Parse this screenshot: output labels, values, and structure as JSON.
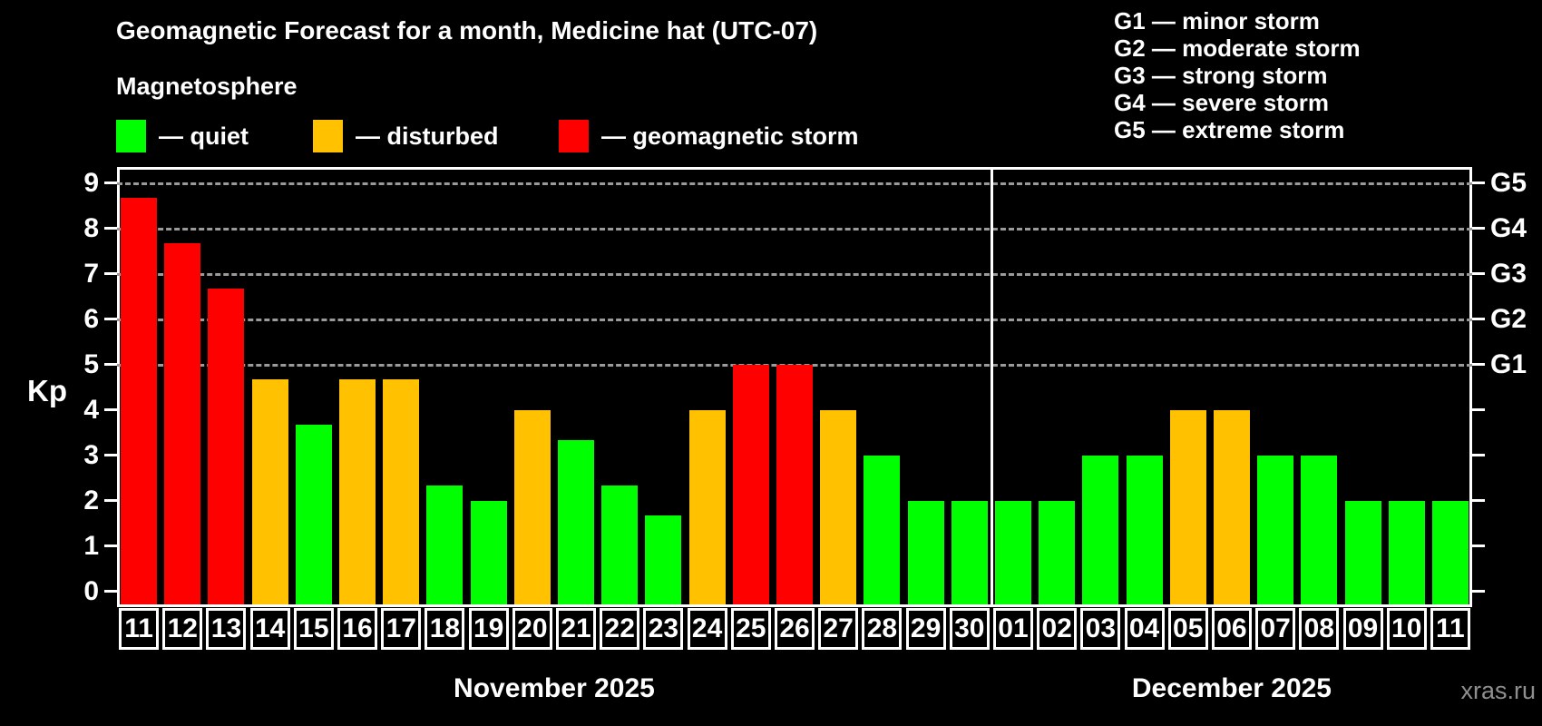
{
  "header": {
    "title": "Geomagnetic Forecast for a month, Medicine hat (UTC-07)",
    "subtitle": "Magnetosphere"
  },
  "legend": {
    "items": [
      {
        "key": "quiet",
        "label": "— quiet",
        "color": "#00ff00"
      },
      {
        "key": "disturbed",
        "label": "— disturbed",
        "color": "#ffc100"
      },
      {
        "key": "storm",
        "label": "— geomagnetic storm",
        "color": "#ff0000"
      }
    ]
  },
  "g_legend": {
    "lines": [
      "G1 — minor storm",
      "G2 — moderate storm",
      "G3 — strong storm",
      "G4 — severe storm",
      "G5 — extreme storm"
    ]
  },
  "chart_data": {
    "type": "bar",
    "title": "Geomagnetic Forecast for a month, Medicine hat (UTC-07)",
    "ylabel": "Kp",
    "y_ticks": [
      0,
      1,
      2,
      3,
      4,
      5,
      6,
      7,
      8,
      9
    ],
    "ylim": [
      -0.35,
      9.35
    ],
    "grid": "dashed-at-storm-levels",
    "grid_levels": [
      {
        "kp": 5,
        "label": "G1"
      },
      {
        "kp": 6,
        "label": "G2"
      },
      {
        "kp": 7,
        "label": "G3"
      },
      {
        "kp": 8,
        "label": "G4"
      },
      {
        "kp": 9,
        "label": "G5"
      }
    ],
    "colors": {
      "quiet": "#00ff00",
      "disturbed": "#ffc100",
      "storm": "#ff0000"
    },
    "days": [
      {
        "day": "11",
        "kp": 8.67,
        "level": "storm"
      },
      {
        "day": "12",
        "kp": 7.67,
        "level": "storm"
      },
      {
        "day": "13",
        "kp": 6.67,
        "level": "storm"
      },
      {
        "day": "14",
        "kp": 4.67,
        "level": "disturbed"
      },
      {
        "day": "15",
        "kp": 3.67,
        "level": "quiet"
      },
      {
        "day": "16",
        "kp": 4.67,
        "level": "disturbed"
      },
      {
        "day": "17",
        "kp": 4.67,
        "level": "disturbed"
      },
      {
        "day": "18",
        "kp": 2.33,
        "level": "quiet"
      },
      {
        "day": "19",
        "kp": 2.0,
        "level": "quiet"
      },
      {
        "day": "20",
        "kp": 4.0,
        "level": "disturbed"
      },
      {
        "day": "21",
        "kp": 3.33,
        "level": "quiet"
      },
      {
        "day": "22",
        "kp": 2.33,
        "level": "quiet"
      },
      {
        "day": "23",
        "kp": 1.67,
        "level": "quiet"
      },
      {
        "day": "24",
        "kp": 4.0,
        "level": "disturbed"
      },
      {
        "day": "25",
        "kp": 5.0,
        "level": "storm"
      },
      {
        "day": "26",
        "kp": 5.0,
        "level": "storm"
      },
      {
        "day": "27",
        "kp": 4.0,
        "level": "disturbed"
      },
      {
        "day": "28",
        "kp": 3.0,
        "level": "quiet"
      },
      {
        "day": "29",
        "kp": 2.0,
        "level": "quiet"
      },
      {
        "day": "30",
        "kp": 2.0,
        "level": "quiet"
      },
      {
        "day": "01",
        "kp": 2.0,
        "level": "quiet"
      },
      {
        "day": "02",
        "kp": 2.0,
        "level": "quiet"
      },
      {
        "day": "03",
        "kp": 3.0,
        "level": "quiet"
      },
      {
        "day": "04",
        "kp": 3.0,
        "level": "quiet"
      },
      {
        "day": "05",
        "kp": 4.0,
        "level": "disturbed"
      },
      {
        "day": "06",
        "kp": 4.0,
        "level": "disturbed"
      },
      {
        "day": "07",
        "kp": 3.0,
        "level": "quiet"
      },
      {
        "day": "08",
        "kp": 3.0,
        "level": "quiet"
      },
      {
        "day": "09",
        "kp": 2.0,
        "level": "quiet"
      },
      {
        "day": "10",
        "kp": 2.0,
        "level": "quiet"
      },
      {
        "day": "11",
        "kp": 2.0,
        "level": "quiet"
      }
    ],
    "months": [
      {
        "label": "November 2025",
        "start": 0,
        "count": 20
      },
      {
        "label": "December 2025",
        "start": 20,
        "count": 11
      }
    ],
    "legend_position": "top-left"
  },
  "watermark": "xras.ru"
}
